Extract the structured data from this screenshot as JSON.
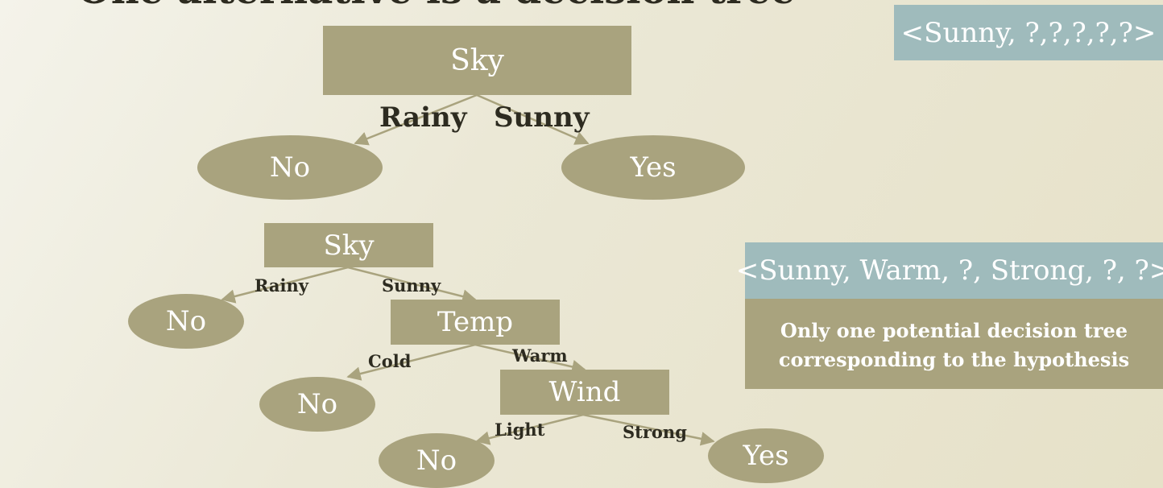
{
  "slide": {
    "title": "One alternative is a decision tree"
  },
  "tree1": {
    "root": "Sky",
    "edge_left": "Rainy",
    "edge_right": "Sunny",
    "leaf_left": "No",
    "leaf_right": "Yes"
  },
  "tree2": {
    "root": "Sky",
    "root_edge_left": "Rainy",
    "root_edge_right": "Sunny",
    "root_leaf": "No",
    "temp": "Temp",
    "temp_edge_left": "Cold",
    "temp_edge_right": "Warm",
    "temp_leaf": "No",
    "wind": "Wind",
    "wind_edge_left": "Light",
    "wind_edge_right": "Strong",
    "wind_leaf_left": "No",
    "wind_leaf_right": "Yes"
  },
  "hypotheses": {
    "first": "<Sunny, ?,?,?,?,?>",
    "second": "<Sunny, Warm, ?, Strong, ?, ?>",
    "note_line1": "Only one potential decision tree",
    "note_line2": "corresponding to the hypothesis"
  },
  "colors": {
    "node": "#a9a37e",
    "hypothesis": "#9fbbbc",
    "label_text": "#2d2b20",
    "edge": "#a9a37e"
  }
}
